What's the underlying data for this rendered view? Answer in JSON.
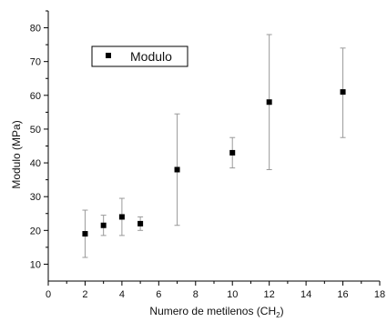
{
  "chart_data": {
    "type": "scatter",
    "title": "",
    "xlabel": "Numero de metilenos (CH",
    "xlabel_sub": "2",
    "xlabel_suffix": ")",
    "ylabel": "Modulo (MPa)",
    "xlim": [
      0,
      18
    ],
    "ylim": [
      5,
      85
    ],
    "xticks": [
      0,
      2,
      4,
      6,
      8,
      10,
      12,
      14,
      16,
      18
    ],
    "yticks": [
      10,
      20,
      30,
      40,
      50,
      60,
      70,
      80
    ],
    "grid": false,
    "legend": {
      "position": "top-left",
      "entries": [
        "Modulo"
      ]
    },
    "series": [
      {
        "name": "Modulo",
        "marker": "square",
        "color": "#000000",
        "points": [
          {
            "x": 2,
            "y": 19,
            "err_low": 12,
            "err_high": 26
          },
          {
            "x": 3,
            "y": 21.5,
            "err_low": 18.5,
            "err_high": 24.5
          },
          {
            "x": 4,
            "y": 24,
            "err_low": 18.5,
            "err_high": 29.5
          },
          {
            "x": 5,
            "y": 22,
            "err_low": 20,
            "err_high": 24
          },
          {
            "x": 7,
            "y": 38,
            "err_low": 21.5,
            "err_high": 54.5
          },
          {
            "x": 10,
            "y": 43,
            "err_low": 38.5,
            "err_high": 47.5
          },
          {
            "x": 12,
            "y": 58,
            "err_low": 38,
            "err_high": 78
          },
          {
            "x": 16,
            "y": 61,
            "err_low": 47.5,
            "err_high": 74
          }
        ]
      }
    ]
  }
}
